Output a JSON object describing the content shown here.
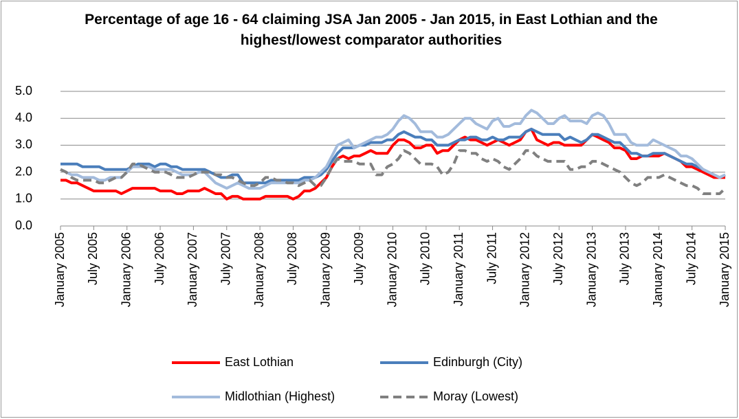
{
  "chart_data": {
    "type": "line",
    "title": "Percentage of age 16 - 64 claiming JSA Jan 2005 - Jan 2015, in East Lothian and the highest/lowest comparator authorities",
    "categories": [
      "January 2005",
      null,
      null,
      null,
      null,
      null,
      "July 2005",
      null,
      null,
      null,
      null,
      null,
      "January 2006",
      null,
      null,
      null,
      null,
      null,
      "July 2006",
      null,
      null,
      null,
      null,
      null,
      "January 2007",
      null,
      null,
      null,
      null,
      null,
      "July 2007",
      null,
      null,
      null,
      null,
      null,
      "January 2008",
      null,
      null,
      null,
      null,
      null,
      "July 2008",
      null,
      null,
      null,
      null,
      null,
      "January 2009",
      null,
      null,
      null,
      null,
      null,
      "July 2009",
      null,
      null,
      null,
      null,
      null,
      "January 2010",
      null,
      null,
      null,
      null,
      null,
      "July 2010",
      null,
      null,
      null,
      null,
      null,
      "January 2011",
      null,
      null,
      null,
      null,
      null,
      "July 2011",
      null,
      null,
      null,
      null,
      null,
      "January 2012",
      null,
      null,
      null,
      null,
      null,
      "July 2012",
      null,
      null,
      null,
      null,
      null,
      "January 2013",
      null,
      null,
      null,
      null,
      null,
      "July 2013",
      null,
      null,
      null,
      null,
      null,
      "January 2014",
      null,
      null,
      null,
      null,
      null,
      "July 2014",
      null,
      null,
      null,
      null,
      null,
      "January 2015"
    ],
    "series": [
      {
        "name": "East Lothian",
        "color": "#ff0000",
        "dashed": false,
        "values": [
          1.7,
          1.7,
          1.6,
          1.6,
          1.5,
          1.4,
          1.3,
          1.3,
          1.3,
          1.3,
          1.3,
          1.2,
          1.3,
          1.4,
          1.4,
          1.4,
          1.4,
          1.4,
          1.3,
          1.3,
          1.3,
          1.2,
          1.2,
          1.3,
          1.3,
          1.3,
          1.4,
          1.3,
          1.2,
          1.2,
          1.0,
          1.1,
          1.1,
          1.0,
          1.0,
          1.0,
          1.0,
          1.1,
          1.1,
          1.1,
          1.1,
          1.1,
          1.0,
          1.1,
          1.3,
          1.3,
          1.4,
          1.6,
          1.8,
          2.2,
          2.5,
          2.6,
          2.5,
          2.6,
          2.6,
          2.7,
          2.8,
          2.7,
          2.7,
          2.7,
          3.0,
          3.2,
          3.2,
          3.1,
          2.9,
          2.9,
          3.0,
          3.0,
          2.7,
          2.8,
          2.8,
          3.0,
          3.2,
          3.3,
          3.2,
          3.2,
          3.1,
          3.0,
          3.1,
          3.2,
          3.1,
          3.0,
          3.1,
          3.2,
          3.5,
          3.6,
          3.2,
          3.1,
          3.0,
          3.1,
          3.1,
          3.0,
          3.0,
          3.0,
          3.0,
          3.2,
          3.4,
          3.3,
          3.2,
          3.1,
          2.9,
          2.9,
          2.8,
          2.5,
          2.5,
          2.6,
          2.6,
          2.6,
          2.6,
          2.7,
          2.6,
          2.5,
          2.4,
          2.2,
          2.2,
          2.1,
          2.0,
          1.9,
          1.8,
          1.8,
          1.8
        ]
      },
      {
        "name": "Edinburgh (City)",
        "color": "#4a7ebb",
        "dashed": false,
        "values": [
          2.3,
          2.3,
          2.3,
          2.3,
          2.2,
          2.2,
          2.2,
          2.2,
          2.1,
          2.1,
          2.1,
          2.1,
          2.1,
          2.2,
          2.3,
          2.3,
          2.3,
          2.2,
          2.3,
          2.3,
          2.2,
          2.2,
          2.1,
          2.1,
          2.1,
          2.1,
          2.1,
          2.0,
          1.9,
          1.8,
          1.8,
          1.9,
          1.9,
          1.6,
          1.6,
          1.6,
          1.6,
          1.6,
          1.7,
          1.7,
          1.7,
          1.7,
          1.7,
          1.7,
          1.8,
          1.8,
          1.8,
          1.9,
          2.1,
          2.4,
          2.7,
          2.9,
          2.9,
          2.9,
          3.0,
          3.0,
          3.1,
          3.1,
          3.1,
          3.2,
          3.2,
          3.4,
          3.5,
          3.4,
          3.3,
          3.3,
          3.2,
          3.2,
          3.0,
          3.0,
          3.0,
          3.1,
          3.2,
          3.2,
          3.3,
          3.3,
          3.2,
          3.2,
          3.3,
          3.2,
          3.2,
          3.3,
          3.3,
          3.3,
          3.5,
          3.6,
          3.5,
          3.4,
          3.4,
          3.4,
          3.4,
          3.2,
          3.3,
          3.2,
          3.1,
          3.2,
          3.4,
          3.4,
          3.3,
          3.2,
          3.1,
          3.1,
          2.9,
          2.7,
          2.7,
          2.6,
          2.6,
          2.7,
          2.7,
          2.7,
          2.6,
          2.5,
          2.4,
          2.3,
          2.3,
          2.2,
          2.1,
          2.0,
          1.9,
          1.8,
          1.9
        ]
      },
      {
        "name": "Midlothian (Highest)",
        "color": "#a3bbdc",
        "dashed": false,
        "values": [
          2.1,
          2.0,
          1.9,
          1.9,
          1.8,
          1.8,
          1.8,
          1.7,
          1.7,
          1.8,
          1.8,
          1.8,
          2.0,
          2.2,
          2.2,
          2.2,
          2.2,
          2.1,
          2.1,
          2.1,
          2.1,
          2.0,
          1.9,
          1.9,
          1.9,
          2.0,
          2.0,
          1.8,
          1.6,
          1.5,
          1.4,
          1.5,
          1.6,
          1.5,
          1.4,
          1.4,
          1.4,
          1.5,
          1.6,
          1.6,
          1.6,
          1.6,
          1.6,
          1.6,
          1.7,
          1.7,
          1.8,
          2.0,
          2.2,
          2.6,
          3.0,
          3.1,
          3.2,
          2.9,
          3.0,
          3.1,
          3.2,
          3.3,
          3.3,
          3.4,
          3.6,
          3.9,
          4.1,
          4.0,
          3.8,
          3.5,
          3.5,
          3.5,
          3.3,
          3.3,
          3.4,
          3.6,
          3.8,
          4.0,
          4.0,
          3.8,
          3.7,
          3.6,
          3.9,
          4.0,
          3.7,
          3.7,
          3.8,
          3.8,
          4.1,
          4.3,
          4.2,
          4.0,
          3.8,
          3.8,
          4.0,
          4.1,
          3.9,
          3.9,
          3.9,
          3.8,
          4.1,
          4.2,
          4.1,
          3.8,
          3.4,
          3.4,
          3.4,
          3.1,
          3.0,
          3.0,
          3.0,
          3.2,
          3.1,
          3.0,
          2.9,
          2.8,
          2.6,
          2.6,
          2.5,
          2.3,
          2.1,
          2.0,
          1.9,
          1.8,
          1.9
        ]
      },
      {
        "name": "Moray (Lowest)",
        "color": "#808080",
        "dashed": true,
        "values": [
          2.1,
          2.0,
          1.8,
          1.7,
          1.7,
          1.7,
          1.7,
          1.6,
          1.6,
          1.7,
          1.8,
          1.8,
          2.0,
          2.3,
          2.3,
          2.2,
          2.1,
          2.0,
          2.0,
          2.0,
          1.9,
          1.8,
          1.8,
          1.8,
          1.9,
          2.0,
          2.0,
          2.0,
          1.9,
          1.9,
          1.8,
          1.8,
          1.7,
          1.6,
          1.5,
          1.5,
          1.6,
          1.8,
          1.8,
          1.7,
          1.7,
          1.6,
          1.6,
          1.5,
          1.6,
          1.7,
          1.5,
          1.5,
          1.8,
          2.2,
          2.5,
          2.4,
          2.4,
          2.4,
          2.3,
          2.3,
          2.3,
          1.9,
          1.9,
          2.2,
          2.3,
          2.5,
          2.8,
          2.7,
          2.5,
          2.3,
          2.3,
          2.3,
          2.2,
          1.9,
          2.0,
          2.3,
          2.8,
          2.8,
          2.7,
          2.7,
          2.5,
          2.4,
          2.5,
          2.4,
          2.2,
          2.1,
          2.3,
          2.5,
          2.8,
          2.8,
          2.6,
          2.5,
          2.4,
          2.4,
          2.4,
          2.4,
          2.1,
          2.1,
          2.2,
          2.2,
          2.4,
          2.4,
          2.3,
          2.2,
          2.1,
          2.0,
          1.8,
          1.6,
          1.5,
          1.6,
          1.8,
          1.8,
          1.8,
          1.9,
          1.8,
          1.7,
          1.6,
          1.5,
          1.5,
          1.4,
          1.2,
          1.2,
          1.2,
          1.2,
          1.4
        ]
      }
    ],
    "ylim": [
      0,
      5
    ],
    "yticks": [
      {
        "value": 0,
        "label": "0.0"
      },
      {
        "value": 1,
        "label": "1.0"
      },
      {
        "value": 2,
        "label": "2.0"
      },
      {
        "value": 3,
        "label": "3.0"
      },
      {
        "value": 4,
        "label": "4.0"
      },
      {
        "value": 5,
        "label": "5.0"
      }
    ],
    "grid": true,
    "legend": "bottom"
  }
}
